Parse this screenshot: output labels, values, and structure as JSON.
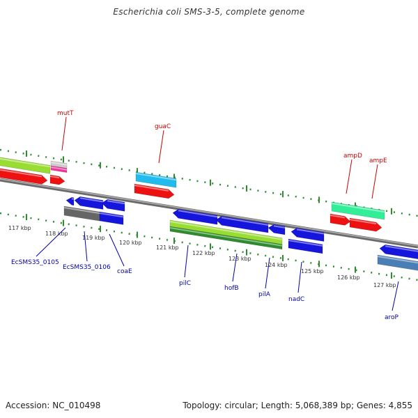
{
  "title": "Escherichia coli SMS-3-5, complete genome",
  "footer": {
    "accession": "Accession: NC_010498",
    "topology": "Topology: circular; Length: 5,068,389 bp; Genes: 4,855"
  },
  "colors": {
    "axis": "#888888",
    "dots": "#2e8b2e",
    "forward_label": "#cc0000",
    "reverse_label": "#0000aa",
    "red": "#ee1111",
    "blue": "#1515dd",
    "green": "#99dd33",
    "cyan": "#22bbee",
    "mint": "#33ee99",
    "pink": "#ee3399",
    "grey": "#777777",
    "steel": "#4a7fb5"
  },
  "ticks": [
    "117 kbp",
    "118 kbp",
    "119 kbp",
    "120 kbp",
    "121 kbp",
    "122 kbp",
    "123 kbp",
    "124 kbp",
    "125 kbp",
    "126 kbp",
    "127 kbp"
  ],
  "forward_labels": [
    "mutT",
    "guaC",
    "ampD",
    "ampE"
  ],
  "reverse_labels": [
    "EcSMS35_0105",
    "EcSMS35_0106",
    "coaE",
    "pilC",
    "hofB",
    "pilA",
    "nadC",
    "aroP"
  ]
}
